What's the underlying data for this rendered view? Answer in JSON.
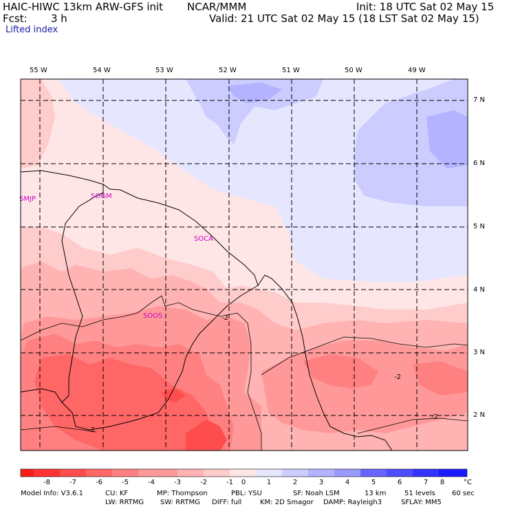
{
  "header": {
    "model": "HAIC-HIWC 13km ARW-GFS init",
    "org": "NCAR/MMM",
    "init": "Init: 18 UTC Sat 02 May 15",
    "fcst_label": "Fcst:",
    "fcst_value": "3 h",
    "valid": "Valid: 21 UTC Sat 02 May 15 (18 LST Sat 02 May 15)",
    "field": "Lifted index"
  },
  "map": {
    "lon_labels": [
      "55 W",
      "54 W",
      "53 W",
      "52 W",
      "51 W",
      "50 W",
      "49 W"
    ],
    "lat_labels": [
      "7 N",
      "6 N",
      "5 N",
      "4 N",
      "3 N",
      "2 N"
    ],
    "stations": [
      "SMJP",
      "SOGM",
      "SOCA",
      "SOOS"
    ],
    "contour_labels": [
      "-2",
      "-2",
      "-2",
      "-2"
    ],
    "colors": {
      "neg8": "#ff1a1a",
      "neg7": "#ff3333",
      "neg6": "#ff4d4d",
      "neg5": "#ff6666",
      "neg4": "#ff8080",
      "neg3": "#ff9999",
      "neg2": "#ffb3b3",
      "neg1": "#ffcccc",
      "zero": "#ffe6e6",
      "pos1": "#e6e6ff",
      "pos2": "#ccccff",
      "pos3": "#b3b3ff",
      "pos4": "#9999ff",
      "pos5": "#6666ff",
      "pos6": "#4d4dff",
      "pos7": "#3333ff",
      "pos8": "#1a1aff"
    }
  },
  "colorbar": {
    "labels": [
      "-8",
      "-7",
      "-6",
      "-5",
      "-4",
      "-3",
      "-2",
      "-1",
      "0",
      "1",
      "2",
      "3",
      "4",
      "5",
      "6",
      "7",
      "8"
    ],
    "unit": "°C"
  },
  "footer": {
    "row1": [
      "Model Info: V3.6.1",
      "CU: KF",
      "MP: Thompson",
      "PBL: YSU",
      "SF: Noah LSM",
      "13 km",
      "51 levels",
      "60 sec"
    ],
    "row2": [
      "LW: RRTMG",
      "SW: RRTMG",
      "DIFF: full",
      "KM: 2D Smagor",
      "DAMP: Rayleigh3",
      "SFLAY: MM5"
    ]
  }
}
